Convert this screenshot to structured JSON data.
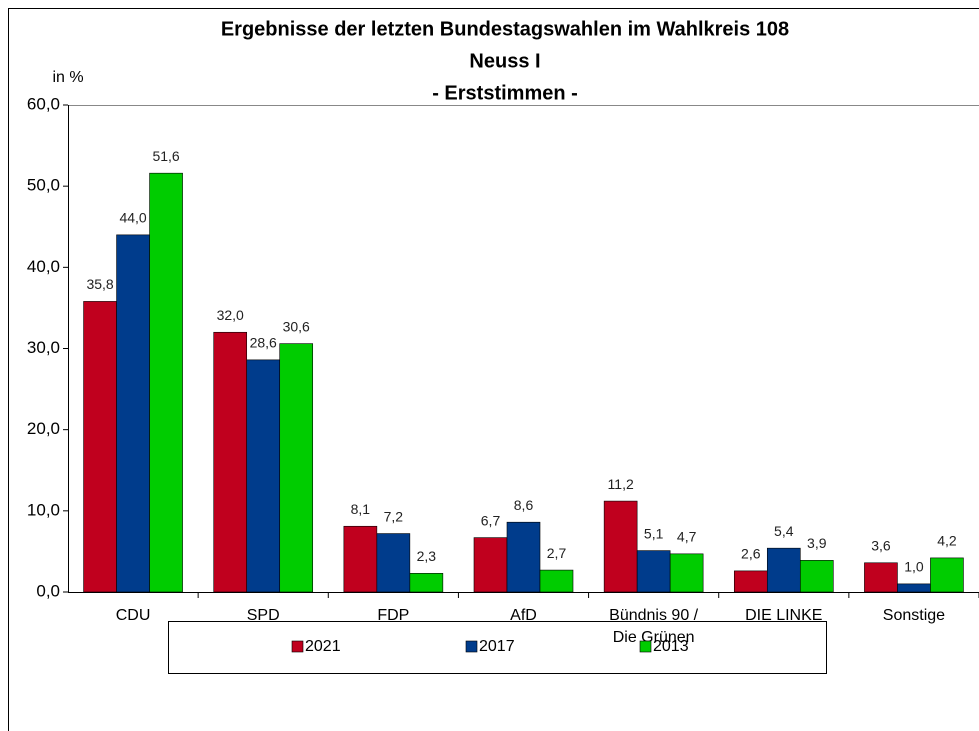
{
  "chart_data": {
    "type": "bar",
    "title": "Ergebnisse der letzten Bundestagswahlen im Wahlkreis 108",
    "subtitle": [
      "Neuss I",
      "- Erststimmen -"
    ],
    "y_label": "in %",
    "categories": [
      "CDU",
      "SPD",
      "FDP",
      "AfD",
      "Bündnis 90 /\nDie Grünen",
      "DIE LINKE",
      "Sonstige"
    ],
    "series": [
      {
        "name": "2021",
        "color": "#c0001e",
        "values": [
          35.8,
          32.0,
          8.1,
          6.7,
          11.2,
          2.6,
          3.6
        ],
        "value_labels": [
          "35,8",
          "32,0",
          "8,1",
          "6,7",
          "11,2",
          "2,6",
          "3,6"
        ]
      },
      {
        "name": "2017",
        "color": "#003c8c",
        "values": [
          44.0,
          28.6,
          7.2,
          8.6,
          5.1,
          5.4,
          1.0
        ],
        "value_labels": [
          "44,0",
          "28,6",
          "7,2",
          "8,6",
          "5,1",
          "5,4",
          "1,0"
        ]
      },
      {
        "name": "2013",
        "color": "#00cc00",
        "values": [
          51.6,
          30.6,
          2.3,
          2.7,
          4.7,
          3.9,
          4.2
        ],
        "value_labels": [
          "51,6",
          "30,6",
          "2,3",
          "2,7",
          "4,7",
          "3,9",
          "4,2"
        ]
      }
    ],
    "ylim": [
      0,
      60
    ],
    "yticks": [
      {
        "value": 0,
        "label": "0,0"
      },
      {
        "value": 10,
        "label": "10,0"
      },
      {
        "value": 20,
        "label": "20,0"
      },
      {
        "value": 30,
        "label": "30,0"
      },
      {
        "value": 40,
        "label": "40,0"
      },
      {
        "value": 50,
        "label": "50,0"
      },
      {
        "value": 60,
        "label": "60,0"
      }
    ],
    "legend": "bottom"
  }
}
